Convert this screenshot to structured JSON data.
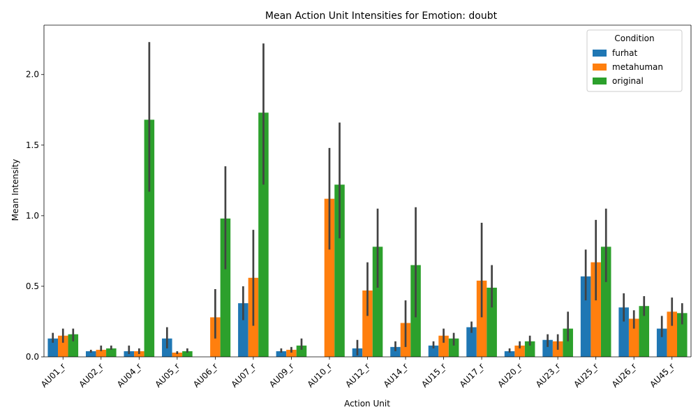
{
  "chart_data": {
    "type": "bar",
    "title": "Mean Action Unit Intensities for Emotion: doubt",
    "xlabel": "Action Unit",
    "ylabel": "Mean Intensity",
    "ylim": [
      0,
      2.35
    ],
    "yticks": [
      0.0,
      0.5,
      1.0,
      1.5,
      2.0
    ],
    "ytick_labels": [
      "0.0",
      "0.5",
      "1.0",
      "1.5",
      "2.0"
    ],
    "grid": false,
    "legend": {
      "title": "Condition",
      "position": "top-right"
    },
    "categories": [
      "AU01_r",
      "AU02_r",
      "AU04_r",
      "AU05_r",
      "AU06_r",
      "AU07_r",
      "AU09_r",
      "AU10_r",
      "AU12_r",
      "AU14_r",
      "AU15_r",
      "AU17_r",
      "AU20_r",
      "AU23_r",
      "AU25_r",
      "AU26_r",
      "AU45_r"
    ],
    "series": [
      {
        "name": "furhat",
        "color": "#1f77b4",
        "values": [
          0.13,
          0.04,
          0.04,
          0.13,
          0.0,
          0.38,
          0.04,
          0.0,
          0.06,
          0.07,
          0.08,
          0.21,
          0.04,
          0.12,
          0.57,
          0.35,
          0.2
        ],
        "ci_low": [
          0.1,
          0.03,
          0.02,
          0.06,
          0.0,
          0.26,
          0.03,
          0.0,
          0.01,
          0.04,
          0.06,
          0.17,
          0.03,
          0.07,
          0.4,
          0.25,
          0.14
        ],
        "ci_high": [
          0.17,
          0.05,
          0.08,
          0.21,
          0.0,
          0.5,
          0.06,
          0.0,
          0.12,
          0.11,
          0.11,
          0.25,
          0.06,
          0.16,
          0.76,
          0.45,
          0.29
        ]
      },
      {
        "name": "metahuman",
        "color": "#ff7f0e",
        "values": [
          0.15,
          0.05,
          0.04,
          0.03,
          0.28,
          0.56,
          0.05,
          1.12,
          0.47,
          0.24,
          0.15,
          0.54,
          0.08,
          0.11,
          0.67,
          0.27,
          0.32
        ],
        "ci_low": [
          0.1,
          0.04,
          0.02,
          0.02,
          0.13,
          0.22,
          0.03,
          0.76,
          0.29,
          0.07,
          0.1,
          0.28,
          0.06,
          0.05,
          0.4,
          0.2,
          0.22
        ],
        "ci_high": [
          0.2,
          0.08,
          0.06,
          0.04,
          0.48,
          0.9,
          0.07,
          1.48,
          0.67,
          0.4,
          0.2,
          0.95,
          0.11,
          0.16,
          0.97,
          0.33,
          0.42
        ]
      },
      {
        "name": "original",
        "color": "#2ca02c",
        "values": [
          0.16,
          0.06,
          1.68,
          0.04,
          0.98,
          1.73,
          0.08,
          1.22,
          0.78,
          0.65,
          0.13,
          0.49,
          0.11,
          0.2,
          0.78,
          0.36,
          0.31
        ],
        "ci_low": [
          0.11,
          0.05,
          1.17,
          0.03,
          0.62,
          1.22,
          0.05,
          0.84,
          0.49,
          0.28,
          0.08,
          0.35,
          0.08,
          0.11,
          0.53,
          0.29,
          0.23
        ],
        "ci_high": [
          0.2,
          0.08,
          2.23,
          0.06,
          1.35,
          2.22,
          0.13,
          1.66,
          1.05,
          1.06,
          0.17,
          0.65,
          0.15,
          0.32,
          1.05,
          0.43,
          0.38
        ]
      }
    ]
  }
}
